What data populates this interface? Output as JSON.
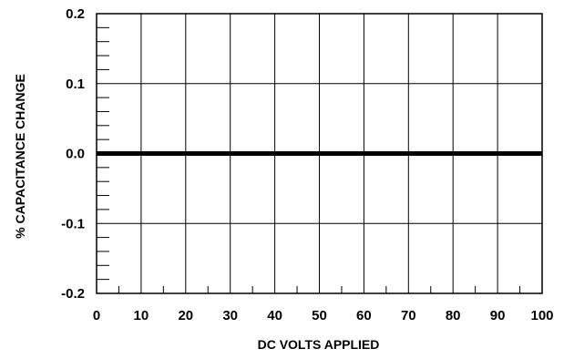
{
  "chart_data": {
    "type": "line",
    "title": "",
    "xlabel": "DC VOLTS APPLIED",
    "ylabel": "% CAPACITANCE CHANGE",
    "xlim": [
      0,
      100
    ],
    "ylim": [
      -0.2,
      0.2
    ],
    "x_ticks": [
      0,
      10,
      20,
      30,
      40,
      50,
      60,
      70,
      80,
      90,
      100
    ],
    "x_tick_labels": [
      "0",
      "10",
      "20",
      "30",
      "40",
      "50",
      "60",
      "70",
      "80",
      "90",
      "100"
    ],
    "y_ticks": [
      0.2,
      0.1,
      0.0,
      -0.1,
      -0.2
    ],
    "y_tick_labels": [
      "0.2",
      "0.1",
      "0.0",
      "-0.1",
      "-0.2"
    ],
    "x_minor_step": 5,
    "y_minor_step": 0.02,
    "grid": true,
    "series": [
      {
        "x": [
          0,
          100
        ],
        "y": [
          0.0,
          0.0
        ],
        "color": "#000000"
      }
    ]
  }
}
